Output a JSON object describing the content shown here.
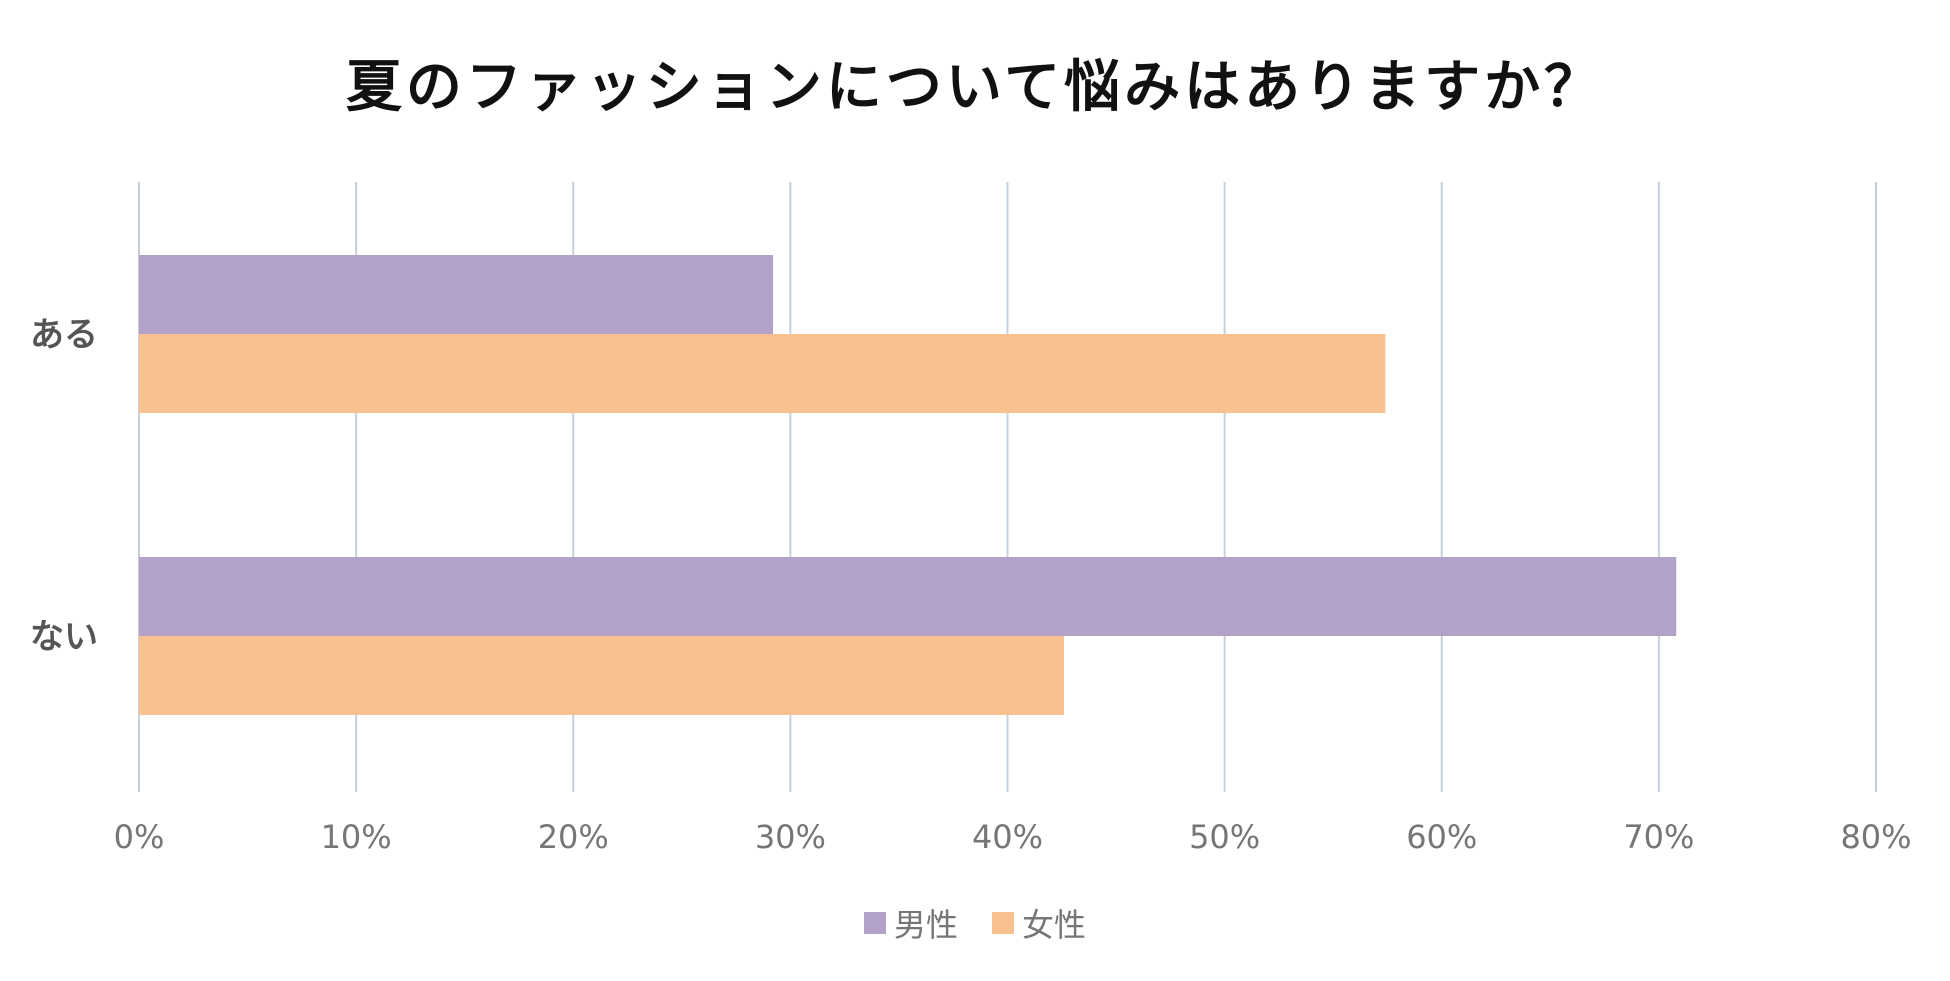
{
  "chart_data": {
    "type": "bar",
    "orientation": "horizontal",
    "title": "夏のファッションについて悩みはありますか？",
    "categories": [
      "ある",
      "ない"
    ],
    "series": [
      {
        "name": "男性",
        "color": "#b2a2c7",
        "values": [
          29.2,
          70.8
        ]
      },
      {
        "name": "女性",
        "color": "#f9c090",
        "values": [
          57.4,
          42.6
        ]
      }
    ],
    "xlim": [
      0,
      80
    ],
    "xticks": [
      0,
      10,
      20,
      30,
      40,
      50,
      60,
      70,
      80
    ],
    "tick_suffix": "%",
    "grid": true,
    "legend_position": "bottom"
  }
}
